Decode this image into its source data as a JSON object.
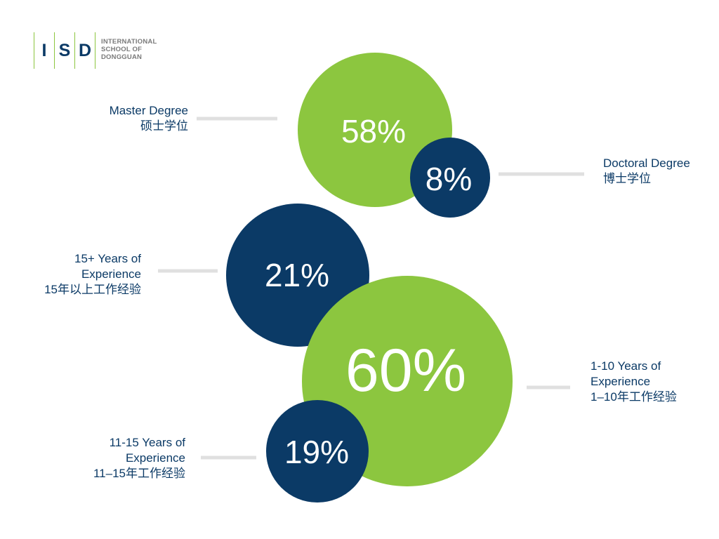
{
  "logo": {
    "letters": [
      "I",
      "S",
      "D"
    ],
    "lines": [
      "INTERNATIONAL",
      "SCHOOL OF",
      "DONGGUAN"
    ]
  },
  "colors": {
    "green": "#8cc63f",
    "navy": "#0b3a66",
    "connector": "#e0e0e0"
  },
  "chart_data": {
    "type": "bubble",
    "groups": [
      {
        "items": [
          {
            "value": 58,
            "display": "58%",
            "color": "green",
            "label_en": "Master Degree",
            "label_zh": "硕士学位"
          },
          {
            "value": 8,
            "display": "8%",
            "color": "navy",
            "label_en": "Doctoral Degree",
            "label_zh": "博士学位"
          }
        ]
      },
      {
        "items": [
          {
            "value": 21,
            "display": "21%",
            "color": "navy",
            "label_en_lines": [
              "15+ Years of",
              "Experience"
            ],
            "label_zh": "15年以上工作经验"
          },
          {
            "value": 60,
            "display": "60%",
            "color": "green",
            "label_en_lines": [
              "1-10 Years of",
              "Experience"
            ],
            "label_zh": "1–10年工作经验"
          },
          {
            "value": 19,
            "display": "19%",
            "color": "navy",
            "label_en_lines": [
              "11-15 Years of",
              "Experience"
            ],
            "label_zh": "11–15年工作经验"
          }
        ]
      }
    ]
  }
}
